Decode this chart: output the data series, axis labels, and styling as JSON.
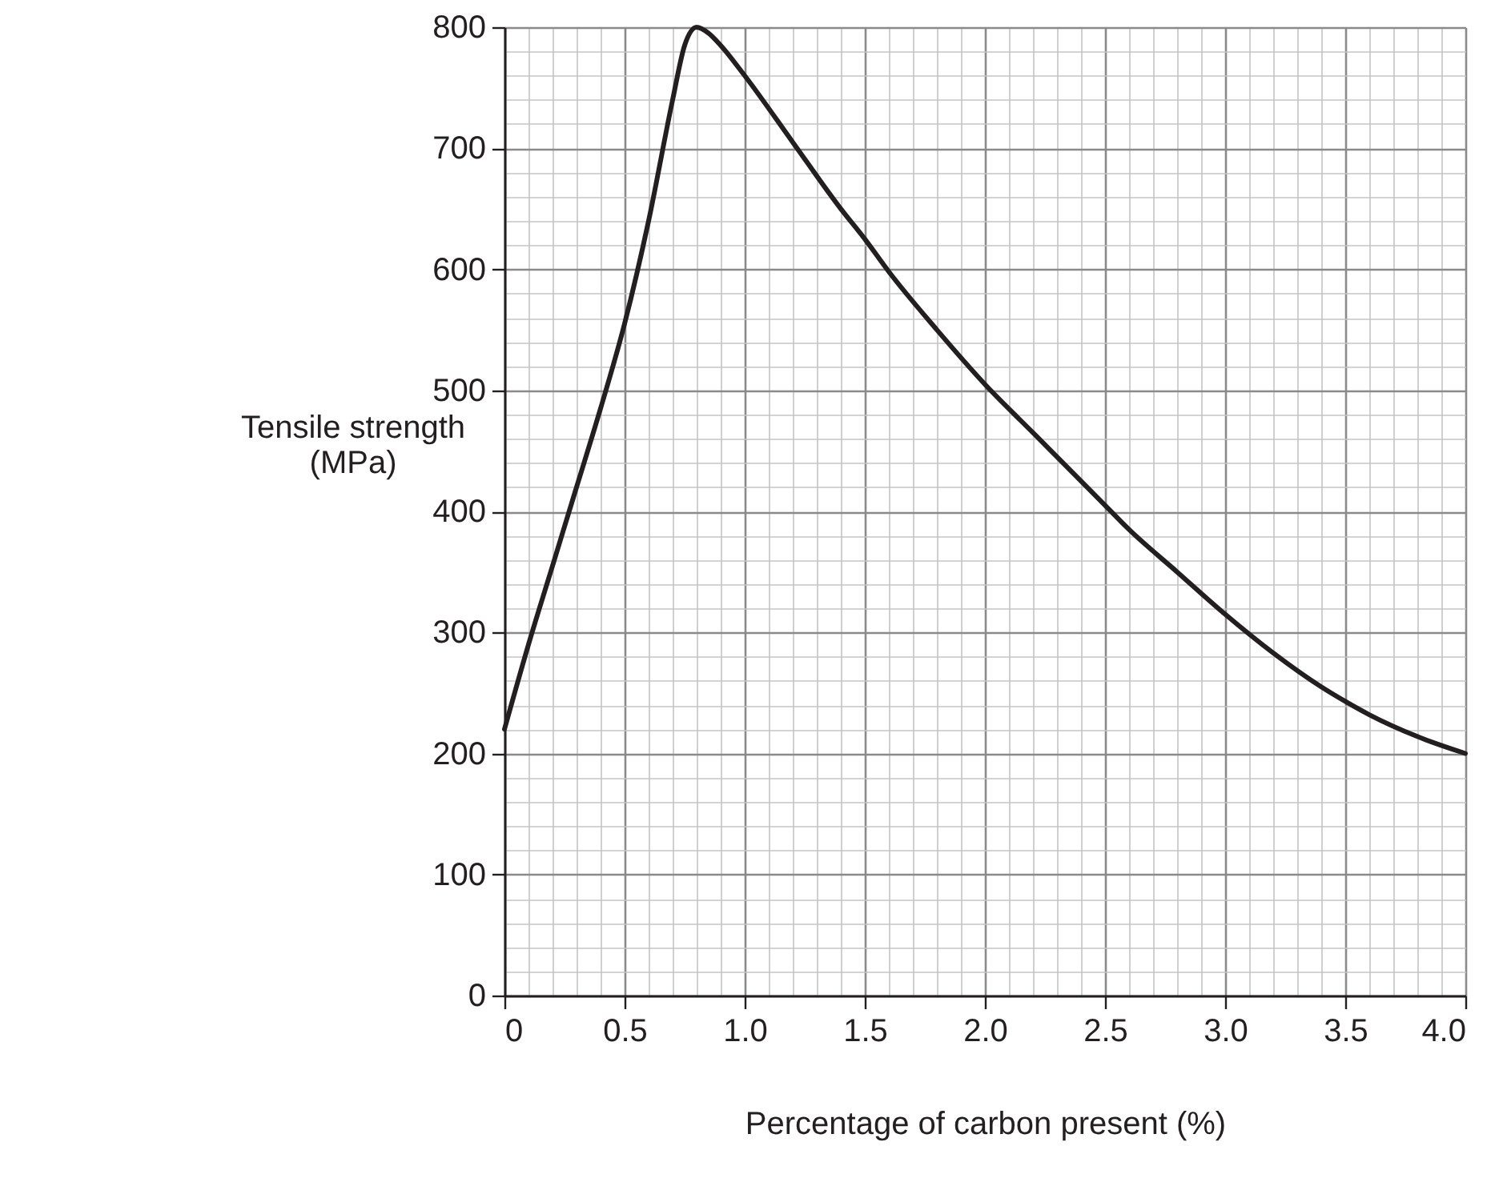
{
  "chart_data": {
    "type": "line",
    "xlabel": "Percentage of carbon present (%)",
    "ylabel": "Tensile strength\n(MPa)",
    "xlim": [
      0,
      4
    ],
    "ylim": [
      0,
      800
    ],
    "xticks": [
      0,
      {
        "value": 0.5,
        "label": "0.5"
      },
      {
        "value": 1,
        "label": "1.0"
      },
      {
        "value": 1.5,
        "label": "1.5"
      },
      {
        "value": 2,
        "label": "2.0"
      },
      {
        "value": 2.5,
        "label": "2.5"
      },
      {
        "value": 3,
        "label": "3.0"
      },
      {
        "value": 3.5,
        "label": "3.5"
      },
      {
        "value": 4,
        "label": "4.0"
      }
    ],
    "yticks": [
      0,
      100,
      200,
      300,
      400,
      500,
      600,
      700,
      800
    ],
    "grid": true,
    "x": [
      0,
      0.1,
      0.2,
      0.3,
      0.4,
      0.5,
      0.6,
      0.7,
      0.75,
      0.8,
      0.85,
      0.9,
      1.0,
      1.2,
      1.4,
      1.5,
      1.6,
      1.8,
      2.0,
      2.2,
      2.4,
      2.5,
      2.6,
      2.8,
      3.0,
      3.2,
      3.4,
      3.5,
      3.6,
      3.8,
      4.0
    ],
    "series": [
      {
        "color": "#231f20",
        "values": [
          220,
          290,
          355,
          420,
          485,
          555,
          640,
          740,
          785,
          800,
          795,
          785,
          760,
          705,
          650,
          625,
          598,
          550,
          505,
          465,
          425,
          405,
          385,
          350,
          315,
          283,
          255,
          243,
          232,
          214,
          200
        ]
      }
    ]
  }
}
